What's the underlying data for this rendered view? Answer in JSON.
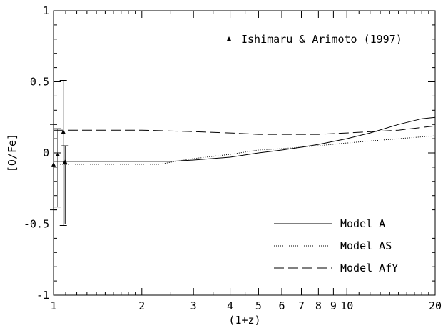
{
  "chart_data": {
    "type": "line",
    "title": "",
    "xlabel": "(1+z)",
    "ylabel": "[O/Fe]",
    "xscale": "log",
    "xlim": [
      1,
      20
    ],
    "ylim": [
      -1,
      1
    ],
    "x_ticks_major": [
      1,
      2,
      3,
      4,
      5,
      6,
      7,
      8,
      9,
      10,
      20
    ],
    "x_tick_labels": [
      "1",
      "2",
      "3",
      "4",
      "5",
      "6",
      "7",
      "8",
      "9",
      "10",
      "20"
    ],
    "y_ticks_major": [
      -1,
      -0.5,
      0,
      0.5,
      1
    ],
    "y_tick_labels": [
      "-1",
      "-0.5",
      "0",
      "0.5",
      "1"
    ],
    "grid": false,
    "legend_placement": "bottom-right",
    "series": [
      {
        "name": "Model A",
        "style": "solid",
        "points": [
          [
            1,
            -0.06
          ],
          [
            1.5,
            -0.06
          ],
          [
            2,
            -0.06
          ],
          [
            2.5,
            -0.06
          ],
          [
            3,
            -0.05
          ],
          [
            4,
            -0.03
          ],
          [
            5,
            0.0
          ],
          [
            6,
            0.02
          ],
          [
            7,
            0.04
          ],
          [
            8,
            0.06
          ],
          [
            10,
            0.1
          ],
          [
            12,
            0.14
          ],
          [
            15,
            0.2
          ],
          [
            18,
            0.24
          ],
          [
            20,
            0.25
          ]
        ]
      },
      {
        "name": "Model AS",
        "style": "dotted",
        "points": [
          [
            1,
            -0.08
          ],
          [
            1.5,
            -0.08
          ],
          [
            2,
            -0.08
          ],
          [
            2.3,
            -0.08
          ],
          [
            2.6,
            -0.06
          ],
          [
            3,
            -0.04
          ],
          [
            4,
            -0.01
          ],
          [
            5,
            0.02
          ],
          [
            6,
            0.03
          ],
          [
            8,
            0.05
          ],
          [
            10,
            0.07
          ],
          [
            15,
            0.1
          ],
          [
            20,
            0.12
          ]
        ]
      },
      {
        "name": "Model AfY",
        "style": "dashed",
        "points": [
          [
            1,
            0.16
          ],
          [
            1.5,
            0.16
          ],
          [
            2,
            0.16
          ],
          [
            3,
            0.15
          ],
          [
            4,
            0.14
          ],
          [
            5,
            0.13
          ],
          [
            6,
            0.13
          ],
          [
            8,
            0.13
          ],
          [
            10,
            0.14
          ],
          [
            15,
            0.16
          ],
          [
            20,
            0.19
          ]
        ]
      }
    ],
    "observations": {
      "name": "Ishimaru & Arimoto (1997)",
      "marker": "triangle",
      "points": [
        {
          "x": 1.0,
          "y": -0.08,
          "yerr_low": -0.4,
          "yerr_high": 0.2
        },
        {
          "x": 1.02,
          "y": -0.01,
          "yerr_low": -0.38,
          "yerr_high": 0.17
        },
        {
          "x": 1.05,
          "y": 0.15,
          "yerr_low": -0.51,
          "yerr_high": 0.51
        },
        {
          "x": 1.05,
          "y": -0.06,
          "yerr_low": -0.5,
          "yerr_high": 0.05
        }
      ]
    }
  }
}
